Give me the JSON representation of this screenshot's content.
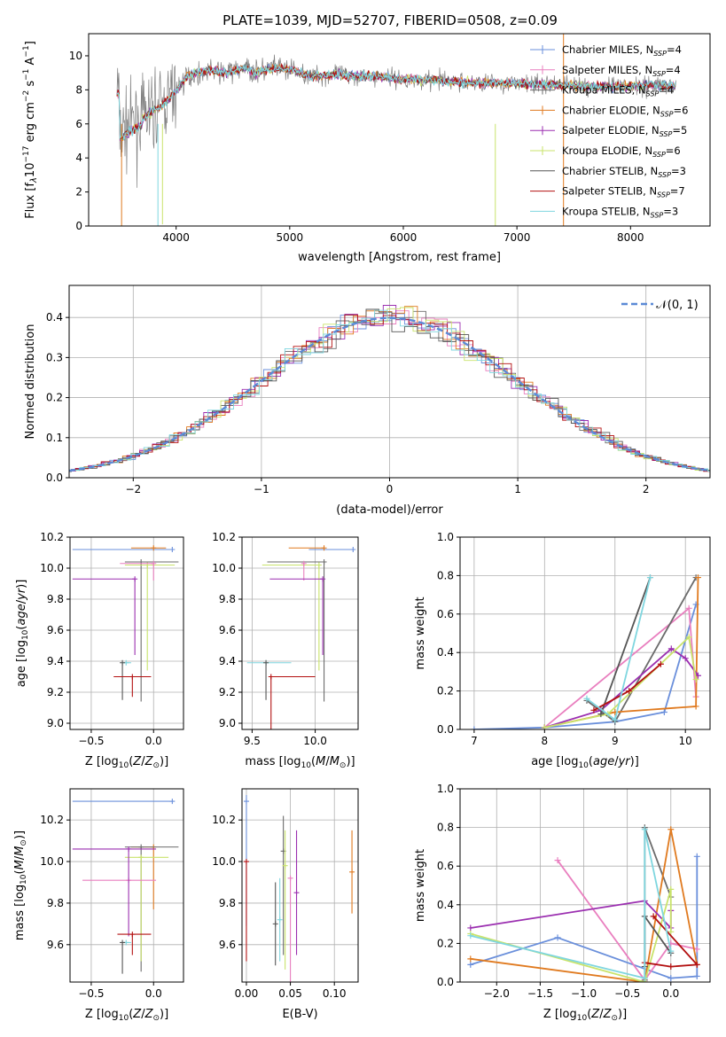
{
  "title": "PLATE=1039, MJD=52707, FIBERID=0508, z=0.09",
  "colors": {
    "Chabrier MILES": "#6a8fdb",
    "Salpeter MILES": "#e97fbf",
    "Kroupa MILES": "#6b6b6b",
    "Chabrier ELODIE": "#e07a1f",
    "Salpeter ELODIE": "#9b2fb0",
    "Kroupa ELODIE": "#c9e36b",
    "Chabrier STELIB": "#555555",
    "Salpeter STELIB": "#b31010",
    "Kroupa STELIB": "#7fd6df"
  },
  "chart_data": [
    {
      "id": "spectrum",
      "type": "line",
      "xlabel": "wavelength [Angstrom, rest frame]",
      "ylabel": "Flux [f_λ 10^-17 erg cm^-2 s^-1 A^-1]",
      "xlim": [
        3230,
        8700
      ],
      "ylim": [
        0,
        11.3
      ],
      "xticks": [
        4000,
        5000,
        6000,
        7000,
        8000
      ],
      "yticks": [
        0,
        2,
        4,
        6,
        8,
        10
      ],
      "grid": false,
      "legend": "right",
      "observed_continuum": [
        [
          3500,
          5.5
        ],
        [
          3600,
          6.0
        ],
        [
          3700,
          6.3
        ],
        [
          3800,
          6.8
        ],
        [
          3900,
          7.2
        ],
        [
          4000,
          8.0
        ],
        [
          4100,
          8.8
        ],
        [
          4200,
          9.0
        ],
        [
          4300,
          9.2
        ],
        [
          4400,
          9.0
        ],
        [
          4500,
          9.1
        ],
        [
          4600,
          9.3
        ],
        [
          4700,
          9.0
        ],
        [
          4800,
          9.2
        ],
        [
          4900,
          9.3
        ],
        [
          5000,
          9.2
        ],
        [
          5200,
          8.8
        ],
        [
          5400,
          8.9
        ],
        [
          5600,
          8.8
        ],
        [
          5800,
          8.8
        ],
        [
          6000,
          8.6
        ],
        [
          6200,
          8.6
        ],
        [
          6400,
          8.5
        ],
        [
          6600,
          8.4
        ],
        [
          6800,
          8.4
        ],
        [
          7000,
          8.4
        ],
        [
          7200,
          8.3
        ],
        [
          7400,
          8.3
        ],
        [
          7600,
          8.2
        ],
        [
          7800,
          8.2
        ],
        [
          8000,
          8.2
        ],
        [
          8200,
          8.3
        ],
        [
          8400,
          8.2
        ]
      ],
      "legend_entries": [
        {
          "name": "Chabrier MILES",
          "n_ssp": 4
        },
        {
          "name": "Salpeter MILES",
          "n_ssp": 4
        },
        {
          "name": "Kroupa MILES",
          "n_ssp": 4
        },
        {
          "name": "Chabrier ELODIE",
          "n_ssp": 6
        },
        {
          "name": "Salpeter ELODIE",
          "n_ssp": 5
        },
        {
          "name": "Kroupa ELODIE",
          "n_ssp": 6
        },
        {
          "name": "Chabrier STELIB",
          "n_ssp": 3
        },
        {
          "name": "Salpeter STELIB",
          "n_ssp": 7
        },
        {
          "name": "Kroupa STELIB",
          "n_ssp": 3
        }
      ]
    },
    {
      "id": "residual_hist",
      "type": "histogram",
      "xlabel": "(data-model)/error",
      "ylabel": "Normed distribution",
      "xlim": [
        -2.5,
        2.5
      ],
      "ylim": [
        0,
        0.48
      ],
      "xticks": [
        -2,
        -1,
        0,
        1,
        2
      ],
      "yticks": [
        0.0,
        0.1,
        0.2,
        0.3,
        0.4
      ],
      "grid": true,
      "legend": "top-right",
      "reference_label": "𝒩(0, 1)"
    },
    {
      "id": "age_vs_Z",
      "type": "errorbar",
      "xlabel": "Z [log10(Z/Z⊙)]",
      "ylabel": "age [log10(age/yr)]",
      "xlim": [
        -0.67,
        0.24
      ],
      "ylim": [
        8.96,
        10.2
      ],
      "xticks": [
        -0.5,
        0.0
      ],
      "yticks": [
        9.0,
        9.2,
        9.4,
        9.6,
        9.8,
        10.0,
        10.2
      ],
      "points": [
        {
          "model": "Chabrier MILES",
          "x": 0.15,
          "xerr": [
            0.8,
            0.0
          ],
          "y": 10.12,
          "yerr": [
            0.0,
            0.0
          ]
        },
        {
          "model": "Chabrier ELODIE",
          "x": 0.0,
          "xerr": [
            0.18,
            0.1
          ],
          "y": 10.13,
          "yerr": [
            0.0,
            0.0
          ]
        },
        {
          "model": "Kroupa MILES",
          "x": -0.1,
          "xerr": [
            0.13,
            0.3
          ],
          "y": 10.04,
          "yerr": [
            0.9,
            0.0
          ]
        },
        {
          "model": "Kroupa ELODIE",
          "x": -0.05,
          "xerr": [
            0.18,
            0.22
          ],
          "y": 10.02,
          "yerr": [
            0.68,
            0.0
          ]
        },
        {
          "model": "Salpeter MILES",
          "x": 0.0,
          "xerr": [
            0.27,
            0.0
          ],
          "y": 10.03,
          "yerr": [
            0.11,
            0.0
          ]
        },
        {
          "model": "Salpeter ELODIE",
          "x": -0.15,
          "xerr": [
            0.5,
            0.0
          ],
          "y": 9.93,
          "yerr": [
            0.49,
            0.0
          ]
        },
        {
          "model": "Kroupa STELIB",
          "x": -0.22,
          "xerr": [
            0.04,
            0.04
          ],
          "y": 9.39,
          "yerr": [
            0.0,
            0.0
          ]
        },
        {
          "model": "Chabrier STELIB",
          "x": -0.25,
          "xerr": [
            0.0,
            0.0
          ],
          "y": 9.39,
          "yerr": [
            0.24,
            0.0
          ]
        },
        {
          "model": "Salpeter STELIB",
          "x": -0.17,
          "xerr": [
            0.15,
            0.15
          ],
          "y": 9.3,
          "yerr": [
            0.13,
            0.0
          ]
        }
      ]
    },
    {
      "id": "age_vs_mass",
      "type": "errorbar",
      "xlabel": "mass [log10(M/M⊙)]",
      "ylabel": "",
      "xlim": [
        9.42,
        10.34
      ],
      "ylim": [
        8.96,
        10.2
      ],
      "xticks": [
        9.5,
        10.0
      ],
      "yticks": [
        9.0,
        9.2,
        9.4,
        9.6,
        9.8,
        10.0,
        10.2
      ],
      "points": [
        {
          "model": "Chabrier MILES",
          "x": 10.3,
          "xerr": [
            0.35,
            0.0
          ],
          "y": 10.12,
          "yerr": [
            0.0,
            0.0
          ]
        },
        {
          "model": "Chabrier ELODIE",
          "x": 10.07,
          "xerr": [
            0.28,
            0.0
          ],
          "y": 10.13,
          "yerr": [
            0.0,
            0.0
          ]
        },
        {
          "model": "Kroupa MILES",
          "x": 10.07,
          "xerr": [
            0.45,
            0.0
          ],
          "y": 10.04,
          "yerr": [
            0.9,
            0.0
          ]
        },
        {
          "model": "Kroupa ELODIE",
          "x": 10.03,
          "xerr": [
            0.45,
            0.0
          ],
          "y": 10.02,
          "yerr": [
            0.68,
            0.0
          ]
        },
        {
          "model": "Salpeter MILES",
          "x": 9.91,
          "xerr": [
            0.0,
            0.0
          ],
          "y": 10.03,
          "yerr": [
            0.11,
            0.0
          ]
        },
        {
          "model": "Salpeter ELODIE",
          "x": 10.06,
          "xerr": [
            0.42,
            0.0
          ],
          "y": 9.93,
          "yerr": [
            0.49,
            0.0
          ]
        },
        {
          "model": "Kroupa STELIB",
          "x": 9.61,
          "xerr": [
            0.15,
            0.2
          ],
          "y": 9.39,
          "yerr": [
            0.0,
            0.0
          ]
        },
        {
          "model": "Chabrier STELIB",
          "x": 9.61,
          "xerr": [
            0.0,
            0.0
          ],
          "y": 9.39,
          "yerr": [
            0.24,
            0.0
          ]
        },
        {
          "model": "Salpeter STELIB",
          "x": 9.65,
          "xerr": [
            0.0,
            0.35
          ],
          "y": 9.3,
          "yerr": [
            0.34,
            0.0
          ]
        }
      ]
    },
    {
      "id": "mass_weight_vs_age",
      "type": "line",
      "xlabel": "age [log10(age/yr)]",
      "ylabel": "mass weight",
      "xlim": [
        6.8,
        10.35
      ],
      "ylim": [
        0,
        1.0
      ],
      "xticks": [
        7,
        8,
        9,
        10
      ],
      "yticks": [
        0.0,
        0.2,
        0.4,
        0.6,
        0.8,
        1.0
      ],
      "grid": true,
      "series": [
        {
          "model": "Chabrier MILES",
          "x": [
            7.0,
            8.0,
            9.0,
            9.7,
            10.15
          ],
          "y": [
            0.0,
            0.01,
            0.04,
            0.09,
            0.65
          ]
        },
        {
          "model": "Salpeter MILES",
          "x": [
            8.0,
            10.05,
            10.15
          ],
          "y": [
            0.01,
            0.63,
            0.17
          ]
        },
        {
          "model": "Kroupa MILES",
          "x": [
            8.6,
            9.0,
            10.15
          ],
          "y": [
            0.15,
            0.04,
            0.79
          ]
        },
        {
          "model": "Chabrier ELODIE",
          "x": [
            8.0,
            9.0,
            10.15,
            10.18
          ],
          "y": [
            0.01,
            0.09,
            0.12,
            0.79
          ]
        },
        {
          "model": "Salpeter ELODIE",
          "x": [
            8.0,
            8.8,
            9.8,
            10.0,
            10.18
          ],
          "y": [
            0.01,
            0.1,
            0.42,
            0.37,
            0.28
          ]
        },
        {
          "model": "Kroupa ELODIE",
          "x": [
            8.0,
            8.9,
            10.05,
            10.15
          ],
          "y": [
            0.01,
            0.08,
            0.48,
            0.26
          ]
        },
        {
          "model": "Chabrier STELIB",
          "x": [
            8.8,
            9.5
          ],
          "y": [
            0.08,
            0.79
          ]
        },
        {
          "model": "Salpeter STELIB",
          "x": [
            8.7,
            9.2,
            9.65
          ],
          "y": [
            0.1,
            0.2,
            0.34
          ]
        },
        {
          "model": "Kroupa STELIB",
          "x": [
            8.6,
            9.0,
            9.5
          ],
          "y": [
            0.16,
            0.05,
            0.79
          ]
        }
      ]
    },
    {
      "id": "mass_vs_Z",
      "type": "errorbar",
      "xlabel": "Z [log10(Z/Z⊙)]",
      "ylabel": "mass [log10(M/M⊙)]",
      "xlim": [
        -0.67,
        0.24
      ],
      "ylim": [
        9.42,
        10.35
      ],
      "xticks": [
        -0.5,
        0.0
      ],
      "yticks": [
        9.6,
        9.8,
        10.0,
        10.2
      ],
      "points": [
        {
          "model": "Chabrier MILES",
          "x": 0.15,
          "xerr": [
            0.8,
            0.0
          ],
          "y": 10.29,
          "yerr": [
            0.0,
            0.0
          ]
        },
        {
          "model": "Chabrier ELODIE",
          "x": 0.0,
          "xerr": [
            0.18,
            0.0
          ],
          "y": 10.07,
          "yerr": [
            0.3,
            0.0
          ]
        },
        {
          "model": "Kroupa MILES",
          "x": -0.1,
          "xerr": [
            0.13,
            0.3
          ],
          "y": 10.07,
          "yerr": [
            0.6,
            0.0
          ]
        },
        {
          "model": "Kroupa ELODIE",
          "x": -0.1,
          "xerr": [
            0.13,
            0.22
          ],
          "y": 10.02,
          "yerr": [
            0.5,
            0.0
          ]
        },
        {
          "model": "Salpeter MILES",
          "x": -0.2,
          "xerr": [
            0.37,
            0.22
          ],
          "y": 9.91,
          "yerr": [
            0.0,
            0.0
          ]
        },
        {
          "model": "Salpeter ELODIE",
          "x": -0.2,
          "xerr": [
            0.45,
            0.22
          ],
          "y": 10.06,
          "yerr": [
            0.42,
            0.0
          ]
        },
        {
          "model": "Kroupa STELIB",
          "x": -0.22,
          "xerr": [
            0.04,
            0.04
          ],
          "y": 9.61,
          "yerr": [
            0.0,
            0.0
          ]
        },
        {
          "model": "Chabrier STELIB",
          "x": -0.25,
          "xerr": [
            0.0,
            0.0
          ],
          "y": 9.61,
          "yerr": [
            0.15,
            0.0
          ]
        },
        {
          "model": "Salpeter STELIB",
          "x": -0.17,
          "xerr": [
            0.12,
            0.15
          ],
          "y": 9.65,
          "yerr": [
            0.1,
            0.0
          ]
        }
      ]
    },
    {
      "id": "mass_vs_ebv",
      "type": "errorbar",
      "xlabel": "E(B-V)",
      "ylabel": "",
      "xlim": [
        -0.005,
        0.127
      ],
      "ylim": [
        9.42,
        10.35
      ],
      "xticks": [
        0.0,
        0.05,
        0.1
      ],
      "yticks": [
        9.6,
        9.8,
        10.0,
        10.2
      ],
      "points": [
        {
          "model": "Chabrier MILES",
          "x": 0.0,
          "y": 10.29,
          "yerr": [
            0.6,
            0.03
          ]
        },
        {
          "model": "Salpeter STELIB",
          "x": 0.0,
          "y": 10.0,
          "yerr": [
            0.48,
            0.0
          ]
        },
        {
          "model": "Chabrier STELIB",
          "x": 0.033,
          "y": 9.7,
          "yerr": [
            0.2,
            0.2
          ]
        },
        {
          "model": "Kroupa STELIB",
          "x": 0.038,
          "y": 9.72,
          "yerr": [
            0.2,
            0.2
          ]
        },
        {
          "model": "Kroupa MILES",
          "x": 0.042,
          "y": 10.05,
          "yerr": [
            0.5,
            0.17
          ]
        },
        {
          "model": "Kroupa ELODIE",
          "x": 0.044,
          "y": 9.98,
          "yerr": [
            0.5,
            0.17
          ]
        },
        {
          "model": "Salpeter MILES",
          "x": 0.05,
          "y": 9.92,
          "yerr": [
            0.5,
            0.0
          ]
        },
        {
          "model": "Salpeter ELODIE",
          "x": 0.057,
          "y": 9.85,
          "yerr": [
            0.3,
            0.3
          ]
        },
        {
          "model": "Chabrier ELODIE",
          "x": 0.12,
          "y": 9.95,
          "yerr": [
            0.2,
            0.2
          ]
        }
      ]
    },
    {
      "id": "mass_weight_vs_Z",
      "type": "line",
      "xlabel": "Z [log10(Z/Z⊙)]",
      "ylabel": "mass weight",
      "xlim": [
        -2.42,
        0.45
      ],
      "ylim": [
        0,
        1.0
      ],
      "xticks": [
        -2.0,
        -1.5,
        -1.0,
        -0.5,
        0.0
      ],
      "yticks": [
        0.0,
        0.2,
        0.4,
        0.6,
        0.8,
        1.0
      ],
      "grid": true,
      "series": [
        {
          "model": "Chabrier MILES",
          "x": [
            -2.3,
            -1.3,
            0.0,
            0.3,
            0.3
          ],
          "y": [
            0.09,
            0.23,
            0.02,
            0.03,
            0.65
          ]
        },
        {
          "model": "Salpeter MILES",
          "x": [
            -1.3,
            -0.3,
            0.0,
            0.3
          ],
          "y": [
            0.63,
            0.01,
            0.2,
            0.17
          ]
        },
        {
          "model": "Kroupa MILES",
          "x": [
            -0.3,
            -0.3,
            0.0
          ],
          "y": [
            0.01,
            0.8,
            0.44
          ]
        },
        {
          "model": "Chabrier ELODIE",
          "x": [
            -2.3,
            -0.3,
            0.0,
            0.3
          ],
          "y": [
            0.12,
            0.0,
            0.79,
            0.09
          ]
        },
        {
          "model": "Salpeter ELODIE",
          "x": [
            -2.3,
            -0.3,
            0.0,
            0.0
          ],
          "y": [
            0.28,
            0.42,
            0.28,
            0.37
          ]
        },
        {
          "model": "Kroupa ELODIE",
          "x": [
            -2.3,
            -0.3,
            0.0,
            0.0
          ],
          "y": [
            0.25,
            0.0,
            0.48,
            0.26
          ]
        },
        {
          "model": "Chabrier STELIB",
          "x": [
            -0.3,
            -0.3,
            0.0
          ],
          "y": [
            0.08,
            0.34,
            0.15
          ]
        },
        {
          "model": "Salpeter STELIB",
          "x": [
            -0.3,
            0.0,
            0.3,
            -0.2
          ],
          "y": [
            0.1,
            0.08,
            0.09,
            0.34
          ]
        },
        {
          "model": "Kroupa STELIB",
          "x": [
            -2.3,
            -0.3,
            -0.3,
            0.0
          ],
          "y": [
            0.24,
            0.02,
            0.79,
            0.16
          ]
        }
      ]
    }
  ]
}
